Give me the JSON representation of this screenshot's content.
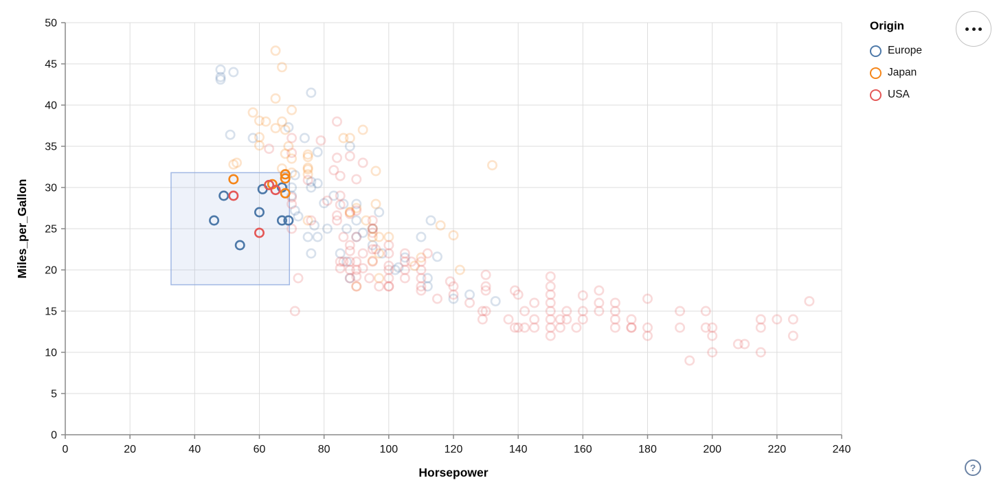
{
  "chart_data": {
    "type": "scatter",
    "title": "",
    "xlabel": "Horsepower",
    "ylabel": "Miles_per_Gallon",
    "xlim": [
      0,
      240
    ],
    "ylim": [
      0,
      50
    ],
    "x_ticks": [
      0,
      20,
      40,
      60,
      80,
      100,
      120,
      140,
      160,
      180,
      200,
      220,
      240
    ],
    "y_ticks": [
      0,
      5,
      10,
      15,
      20,
      25,
      30,
      35,
      40,
      45,
      50
    ],
    "grid": true,
    "mark": "stroked-circle",
    "unselected_opacity": 0.22,
    "legend": {
      "title": "Origin",
      "position": "top-right",
      "entries": [
        {
          "label": "Europe",
          "color": "#4c78a8"
        },
        {
          "label": "Japan",
          "color": "#f58518"
        },
        {
          "label": "USA",
          "color": "#e45756"
        }
      ]
    },
    "selection_brush": {
      "x_range": [
        32.7,
        69.3
      ],
      "y_range": [
        18.2,
        31.8
      ],
      "fill": "rgba(120,156,220,0.13)",
      "stroke": "rgba(140,168,222,0.8)"
    },
    "series": [
      {
        "name": "Europe",
        "color": "#4c78a8",
        "selected_points": [
          [
            46,
            26
          ],
          [
            49,
            29
          ],
          [
            54,
            23
          ],
          [
            60,
            27
          ],
          [
            61,
            29.8
          ],
          [
            67,
            30
          ],
          [
            67,
            26
          ],
          [
            69,
            26
          ]
        ],
        "points": [
          [
            87,
            25
          ],
          [
            90,
            24
          ],
          [
            95,
            25
          ],
          [
            113,
            26
          ],
          [
            90,
            28
          ],
          [
            70,
            30
          ],
          [
            76,
            30
          ],
          [
            97,
            27
          ],
          [
            112,
            18
          ],
          [
            76,
            22
          ],
          [
            87,
            21
          ],
          [
            112,
            19
          ],
          [
            110,
            24
          ],
          [
            83,
            29
          ],
          [
            78,
            24
          ],
          [
            70,
            29
          ],
          [
            86,
            28
          ],
          [
            81,
            25
          ],
          [
            58,
            36
          ],
          [
            103,
            20.3
          ],
          [
            133,
            16.2
          ],
          [
            125,
            17
          ],
          [
            115,
            21.6
          ],
          [
            105,
            21.5
          ],
          [
            48,
            43.1
          ],
          [
            48,
            43.4
          ],
          [
            48,
            44.3
          ],
          [
            52,
            44
          ],
          [
            78,
            34.3
          ],
          [
            69,
            37.3
          ],
          [
            80,
            28.1
          ],
          [
            76,
            30.7
          ],
          [
            76,
            41.5
          ],
          [
            95,
            23
          ],
          [
            90,
            26
          ],
          [
            71,
            31.5
          ],
          [
            77,
            25.4
          ],
          [
            88,
            35
          ],
          [
            98,
            22
          ],
          [
            102,
            20
          ],
          [
            75,
            24
          ],
          [
            78,
            30.5
          ],
          [
            88,
            19
          ],
          [
            120,
            16.5
          ],
          [
            71,
            27.2
          ],
          [
            51,
            36.4
          ],
          [
            74,
            36
          ],
          [
            85,
            22
          ],
          [
            92,
            24.5
          ],
          [
            72,
            26.5
          ]
        ]
      },
      {
        "name": "Japan",
        "color": "#f58518",
        "selected_points": [
          [
            52,
            31
          ],
          [
            64,
            30.4
          ],
          [
            68,
            31.6
          ],
          [
            68,
            31.1
          ],
          [
            68,
            29.3
          ]
        ],
        "points": [
          [
            95,
            24
          ],
          [
            88,
            27
          ],
          [
            88,
            27
          ],
          [
            95,
            25
          ],
          [
            69,
            35
          ],
          [
            97,
            19
          ],
          [
            90,
            18
          ],
          [
            110,
            21.5
          ],
          [
            122,
            20
          ],
          [
            97,
            24
          ],
          [
            53,
            33
          ],
          [
            60,
            36.1
          ],
          [
            75,
            26
          ],
          [
            70,
            33.5
          ],
          [
            95,
            21.1
          ],
          [
            97,
            22
          ],
          [
            52,
            32.8
          ],
          [
            70,
            39.4
          ],
          [
            90,
            27.5
          ],
          [
            70,
            31.8
          ],
          [
            60,
            38.1
          ],
          [
            65,
            37.2
          ],
          [
            75,
            32.2
          ],
          [
            75,
            32.4
          ],
          [
            75,
            31.6
          ],
          [
            92,
            37
          ],
          [
            58,
            39.1
          ],
          [
            75,
            33.7
          ],
          [
            62,
            38
          ],
          [
            100,
            24
          ],
          [
            68,
            34.1
          ],
          [
            68,
            37
          ],
          [
            60,
            35.1
          ],
          [
            67,
            32.3
          ],
          [
            132,
            32.7
          ],
          [
            116,
            25.4
          ],
          [
            120,
            24.2
          ],
          [
            67,
            44.6
          ],
          [
            75,
            34
          ],
          [
            67,
            38
          ],
          [
            88,
            36
          ],
          [
            86,
            36
          ],
          [
            96,
            32
          ],
          [
            65,
            46.6
          ],
          [
            65,
            40.8
          ],
          [
            96,
            28
          ],
          [
            93,
            26
          ],
          [
            108,
            20.5
          ]
        ]
      },
      {
        "name": "USA",
        "color": "#e45756",
        "selected_points": [
          [
            52,
            29
          ],
          [
            60,
            24.5
          ],
          [
            63,
            30.3
          ],
          [
            65,
            29.7
          ]
        ],
        "points": [
          [
            130,
            18
          ],
          [
            165,
            15
          ],
          [
            150,
            18
          ],
          [
            150,
            16
          ],
          [
            140,
            17
          ],
          [
            198,
            15
          ],
          [
            220,
            14
          ],
          [
            215,
            14
          ],
          [
            225,
            14
          ],
          [
            190,
            15
          ],
          [
            170,
            15
          ],
          [
            160,
            14
          ],
          [
            150,
            15
          ],
          [
            95,
            25
          ],
          [
            105,
            22
          ],
          [
            100,
            19
          ],
          [
            88,
            21
          ],
          [
            100,
            20
          ],
          [
            165,
            16
          ],
          [
            175,
            13
          ],
          [
            153,
            14
          ],
          [
            180,
            13
          ],
          [
            170,
            14
          ],
          [
            110,
            21
          ],
          [
            100,
            23
          ],
          [
            88,
            20
          ],
          [
            86,
            21
          ],
          [
            90,
            21
          ],
          [
            70,
            25
          ],
          [
            76,
            26
          ],
          [
            90,
            20
          ],
          [
            88,
            19
          ],
          [
            90,
            18
          ],
          [
            175,
            14
          ],
          [
            150,
            14
          ],
          [
            145,
            13
          ],
          [
            137,
            14
          ],
          [
            150,
            12
          ],
          [
            198,
            13
          ],
          [
            150,
            13
          ],
          [
            158,
            13
          ],
          [
            215,
            13
          ],
          [
            225,
            12
          ],
          [
            175,
            13
          ],
          [
            105,
            19
          ],
          [
            100,
            18
          ],
          [
            100,
            18
          ],
          [
            88,
            23
          ],
          [
            95,
            26
          ],
          [
            95,
            21
          ],
          [
            105,
            20
          ],
          [
            100,
            22
          ],
          [
            110,
            19
          ],
          [
            110,
            20
          ],
          [
            129,
            15
          ],
          [
            110,
            18
          ],
          [
            139,
            13
          ],
          [
            129,
            14
          ],
          [
            140,
            13
          ],
          [
            145,
            14
          ],
          [
            130,
            15
          ],
          [
            95,
            24.5
          ],
          [
            97,
            18
          ],
          [
            85,
            21
          ],
          [
            84,
            26
          ],
          [
            92,
            22
          ],
          [
            94,
            19
          ],
          [
            90,
            24
          ],
          [
            95,
            22.5
          ],
          [
            100,
            20.5
          ],
          [
            105,
            21
          ],
          [
            85,
            29
          ],
          [
            81,
            28.4
          ],
          [
            70,
            28
          ],
          [
            72,
            19
          ],
          [
            85,
            20.2
          ],
          [
            90,
            19.2
          ],
          [
            88,
            22.3
          ],
          [
            84,
            26.6
          ],
          [
            75,
            30.9
          ],
          [
            70,
            34.2
          ],
          [
            70,
            28.8
          ],
          [
            85,
            27.9
          ],
          [
            88,
            26.8
          ],
          [
            90,
            27.2
          ],
          [
            70,
            36
          ],
          [
            86,
            24
          ],
          [
            92,
            20.2
          ],
          [
            112,
            22
          ],
          [
            96,
            22.5
          ],
          [
            150,
            19.2
          ],
          [
            130,
            19.4
          ],
          [
            208,
            11
          ],
          [
            210,
            11
          ],
          [
            215,
            10
          ],
          [
            200,
            10
          ],
          [
            193,
            9
          ],
          [
            230,
            16.2
          ],
          [
            200,
            12
          ],
          [
            115,
            16.5
          ],
          [
            110,
            17.5
          ],
          [
            145,
            16
          ],
          [
            139,
            17.5
          ],
          [
            120,
            18
          ],
          [
            119,
            18.6
          ],
          [
            155,
            14
          ],
          [
            142,
            15
          ],
          [
            107,
            21
          ],
          [
            120,
            17
          ],
          [
            130,
            17.5
          ],
          [
            125,
            16
          ],
          [
            153,
            13
          ],
          [
            160,
            16.9
          ],
          [
            170,
            16
          ],
          [
            190,
            13
          ],
          [
            155,
            15
          ],
          [
            142,
            13
          ],
          [
            180,
            12
          ],
          [
            200,
            13
          ],
          [
            160,
            15
          ],
          [
            180,
            16.5
          ],
          [
            165,
            17.5
          ],
          [
            71,
            15
          ],
          [
            150,
            17
          ],
          [
            170,
            13
          ],
          [
            63,
            34.7
          ],
          [
            84,
            33.6
          ],
          [
            88,
            33.8
          ],
          [
            84,
            38
          ],
          [
            79,
            35.7
          ],
          [
            83,
            32.1
          ],
          [
            85,
            31.4
          ],
          [
            92,
            33
          ],
          [
            90,
            31
          ]
        ]
      }
    ]
  },
  "ui": {
    "actions_button": {
      "icon": "ellipsis-icon"
    },
    "help_button": {
      "label": "?"
    },
    "legend_title": "Origin"
  }
}
